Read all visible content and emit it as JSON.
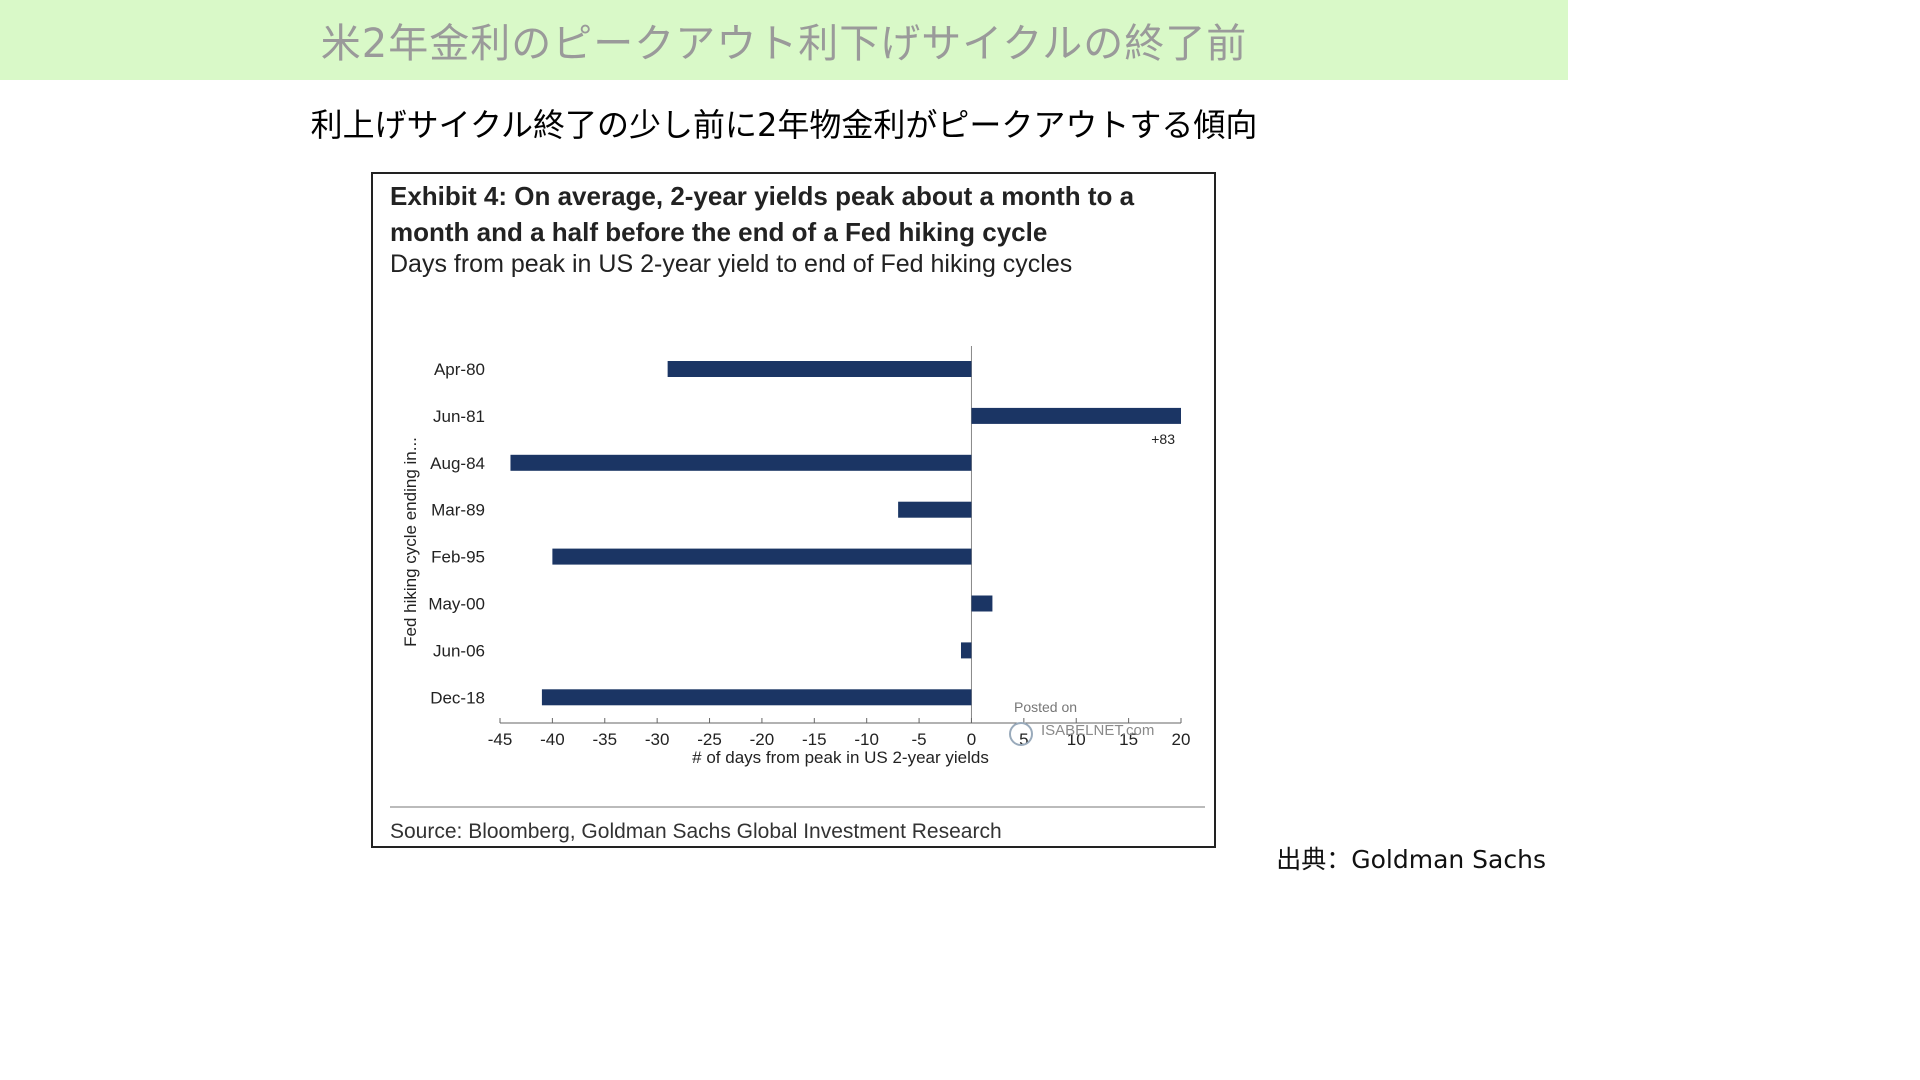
{
  "banner": {
    "title": "米2年金利のピークアウト利下げサイクルの終了前",
    "bg_color": "#d9f9c8"
  },
  "subtitle": "利上げサイクル終了の少し前に2年物金利がピークアウトする傾向",
  "exhibit": {
    "title": "Exhibit 4: On average, 2-year yields peak about a month to a month and a half before the end of a Fed hiking cycle",
    "subtitle": "Days from peak in US 2-year yield to end of Fed hiking cycles",
    "source": "Source: Bloomberg, Goldman Sachs Global Investment Research"
  },
  "watermark": {
    "line1": "Posted on",
    "line2": "ISABELNET.com"
  },
  "credit": "出典：Goldman Sachs",
  "chart_data": {
    "type": "bar",
    "orientation": "horizontal",
    "categories": [
      "Apr-80",
      "Jun-81",
      "Aug-84",
      "Mar-89",
      "Feb-95",
      "May-00",
      "Jun-06",
      "Dec-18"
    ],
    "values": [
      -29,
      20,
      -44,
      -7,
      -40,
      2,
      -1,
      -41
    ],
    "annotations": [
      {
        "category": "Jun-81",
        "text": "+83"
      }
    ],
    "xlabel": "# of days from peak in US 2-year yields",
    "ylabel": "Fed hiking cycle ending in...",
    "xlim": [
      -45,
      20
    ],
    "xticks": [
      -45,
      -40,
      -35,
      -30,
      -25,
      -20,
      -15,
      -10,
      -5,
      0,
      5,
      10,
      15,
      20
    ],
    "bar_color": "#1b3564",
    "grid": false
  }
}
